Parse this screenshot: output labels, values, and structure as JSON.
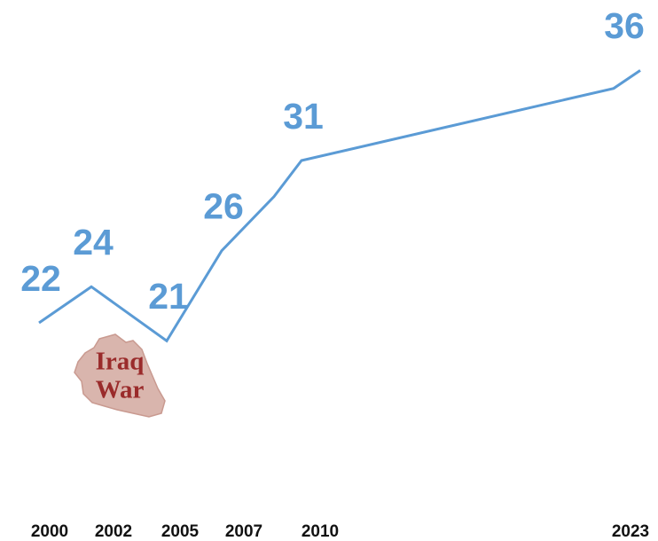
{
  "chart_data": {
    "type": "line",
    "categories": [
      "2000",
      "2002",
      "2005",
      "2007",
      null,
      "2010",
      null,
      "2023"
    ],
    "values": [
      22,
      24,
      21,
      26,
      29,
      31,
      35,
      36
    ],
    "color": "#5b9bd5",
    "ylim": [
      10,
      40
    ],
    "annotation": [
      "Iraq",
      "War"
    ]
  }
}
